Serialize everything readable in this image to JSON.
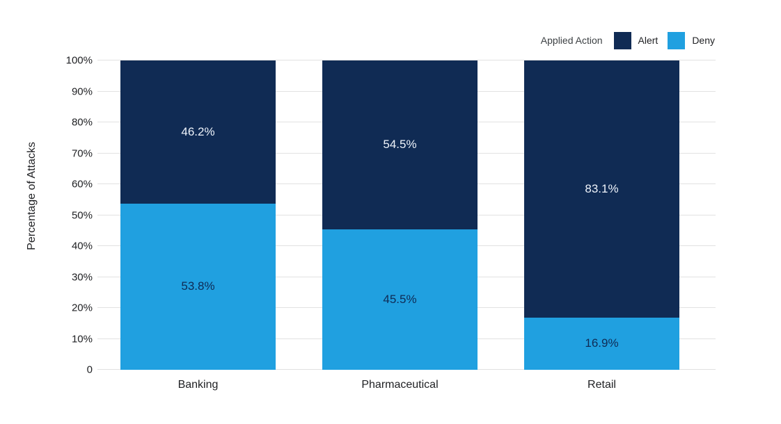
{
  "legend": {
    "title": "Applied Action",
    "items": [
      {
        "label": "Alert",
        "color": "#102b54"
      },
      {
        "label": "Deny",
        "color": "#20a0e0"
      }
    ]
  },
  "chart_data": {
    "type": "bar",
    "stacked": true,
    "percent_stacked": true,
    "title": "",
    "xlabel": "",
    "ylabel": "Percentage of Attacks",
    "ylim": [
      0,
      100
    ],
    "yticks": [
      {
        "value": 0,
        "label": "0"
      },
      {
        "value": 10,
        "label": "10%"
      },
      {
        "value": 20,
        "label": "20%"
      },
      {
        "value": 30,
        "label": "30%"
      },
      {
        "value": 40,
        "label": "40%"
      },
      {
        "value": 50,
        "label": "50%"
      },
      {
        "value": 60,
        "label": "60%"
      },
      {
        "value": 70,
        "label": "70%"
      },
      {
        "value": 80,
        "label": "80%"
      },
      {
        "value": 90,
        "label": "90%"
      },
      {
        "value": 100,
        "label": "100%"
      }
    ],
    "grid": true,
    "legend_position": "top-right",
    "categories": [
      "Banking",
      "Pharmaceutical",
      "Retail"
    ],
    "series": [
      {
        "name": "Deny",
        "color": "#20a0e0",
        "label_color": "#0f2b55",
        "values": [
          53.8,
          45.5,
          16.9
        ],
        "labels": [
          "53.8%",
          "45.5%",
          "16.9%"
        ]
      },
      {
        "name": "Alert",
        "color": "#102b54",
        "label_color": "#eef3fa",
        "values": [
          46.2,
          54.5,
          83.1
        ],
        "labels": [
          "46.2%",
          "54.5%",
          "83.1%"
        ]
      }
    ]
  },
  "colors": {
    "gridline": "#e1e1e1",
    "background": "#ffffff"
  }
}
